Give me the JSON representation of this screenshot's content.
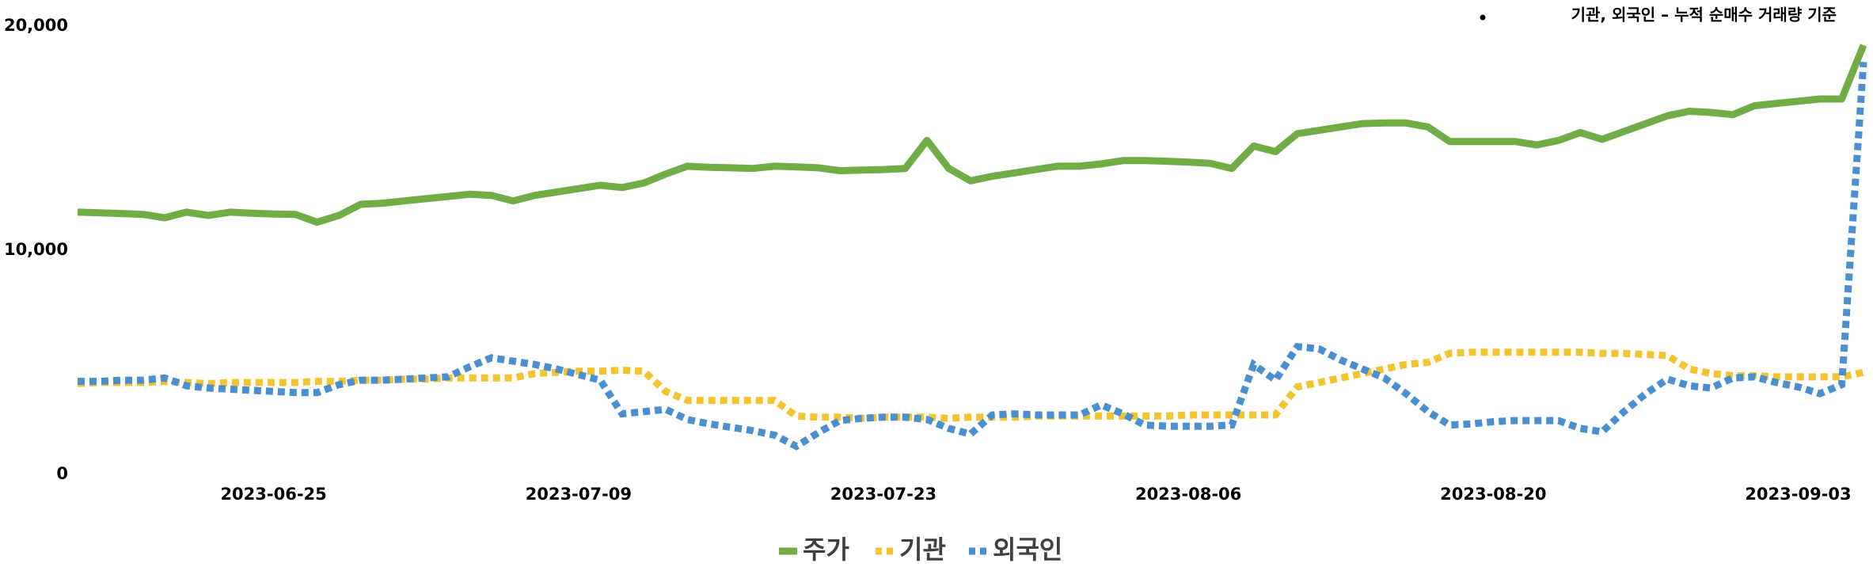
{
  "chart_data": {
    "type": "line",
    "annotation": "기관, 외국인 – 누적 순매수 거래량 기준",
    "categories": [
      null,
      null,
      null,
      null,
      null,
      null,
      null,
      null,
      null,
      "2023-06-25",
      null,
      null,
      null,
      null,
      null,
      null,
      null,
      null,
      null,
      null,
      null,
      null,
      null,
      "2023-07-09",
      null,
      null,
      null,
      null,
      null,
      null,
      null,
      null,
      null,
      null,
      null,
      null,
      null,
      "2023-07-23",
      null,
      null,
      null,
      null,
      null,
      null,
      null,
      null,
      null,
      null,
      null,
      null,
      null,
      "2023-08-06",
      null,
      null,
      null,
      null,
      null,
      null,
      null,
      null,
      null,
      null,
      null,
      null,
      null,
      "2023-08-20",
      null,
      null,
      null,
      null,
      null,
      null,
      null,
      null,
      null,
      null,
      null,
      null,
      null,
      "2023-09-03",
      null,
      null,
      null
    ],
    "series": [
      {
        "name": "주가",
        "color": "#70ad47",
        "style": "solid",
        "values": [
          11700,
          11670,
          11640,
          11600,
          11450,
          11700,
          11550,
          11700,
          11650,
          11620,
          11600,
          11250,
          11550,
          12050,
          12100,
          12200,
          12300,
          12400,
          12500,
          12450,
          12200,
          12450,
          12600,
          12750,
          12900,
          12800,
          13000,
          13400,
          13750,
          13700,
          13680,
          13650,
          13750,
          13720,
          13680,
          13550,
          13580,
          13600,
          13650,
          14900,
          13650,
          13100,
          13300,
          13450,
          13600,
          13750,
          13750,
          13850,
          14000,
          14000,
          13970,
          13930,
          13880,
          13650,
          14650,
          14400,
          15200,
          15350,
          15500,
          15650,
          15680,
          15680,
          15500,
          14850,
          14850,
          14850,
          14850,
          14700,
          14900,
          15250,
          14950,
          15300,
          15650,
          16000,
          16200,
          16150,
          16050,
          16450,
          16550,
          16650,
          16750,
          16750,
          19150
        ]
      },
      {
        "name": "기관",
        "color": "#f4c430",
        "style": "dotted",
        "values": [
          4050,
          4100,
          4100,
          4100,
          4150,
          4100,
          4050,
          4100,
          4100,
          4100,
          4100,
          4150,
          4150,
          4200,
          4200,
          4250,
          4250,
          4300,
          4300,
          4300,
          4300,
          4500,
          4550,
          4600,
          4600,
          4650,
          4600,
          3700,
          3300,
          3300,
          3300,
          3300,
          3300,
          2600,
          2550,
          2550,
          2500,
          2550,
          2550,
          2550,
          2500,
          2550,
          2550,
          2550,
          2600,
          2600,
          2600,
          2600,
          2600,
          2600,
          2600,
          2650,
          2650,
          2650,
          2650,
          2650,
          3900,
          4100,
          4300,
          4500,
          4700,
          4900,
          5000,
          5400,
          5450,
          5450,
          5450,
          5450,
          5450,
          5450,
          5400,
          5400,
          5350,
          5300,
          4700,
          4500,
          4400,
          4400,
          4350,
          4350,
          4350,
          4350,
          4550
        ]
      },
      {
        "name": "외국인",
        "color": "#4a8fcf",
        "style": "dotted",
        "values": [
          4150,
          4150,
          4200,
          4200,
          4300,
          3950,
          3850,
          3800,
          3750,
          3700,
          3650,
          3650,
          4000,
          4200,
          4200,
          4250,
          4300,
          4350,
          4800,
          5200,
          5050,
          4900,
          4700,
          4450,
          4200,
          2700,
          2800,
          2900,
          2450,
          2250,
          2100,
          1950,
          1750,
          1250,
          1850,
          2400,
          2500,
          2550,
          2550,
          2450,
          2050,
          1800,
          2650,
          2700,
          2650,
          2650,
          2650,
          3100,
          2700,
          2200,
          2150,
          2150,
          2150,
          2200,
          4900,
          4200,
          5700,
          5600,
          5100,
          4700,
          4300,
          3600,
          2800,
          2200,
          2250,
          2350,
          2400,
          2400,
          2400,
          2050,
          1900,
          2800,
          3600,
          4250,
          3950,
          3850,
          4300,
          4350,
          4100,
          3900,
          3600,
          4000,
          18400
        ]
      }
    ],
    "ylim": [
      0,
      20000
    ],
    "yticks": [
      0,
      {
        "value": 10000,
        "label": "10,000"
      },
      {
        "value": 20000,
        "label": "20,000"
      }
    ],
    "grid": false,
    "legend": "bottom"
  }
}
